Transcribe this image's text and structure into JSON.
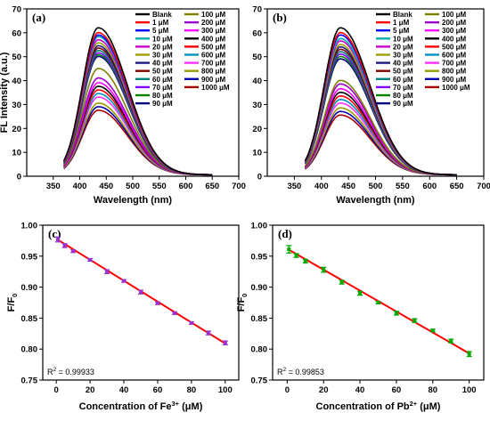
{
  "colors": {
    "spectra": [
      "#000000",
      "#ff0000",
      "#0000ff",
      "#00b0b0",
      "#cc00cc",
      "#a0a000",
      "#1a1a80",
      "#800000",
      "#008080",
      "#8000ff",
      "#008000",
      "#000080",
      "#808000",
      "#9900cc",
      "#ff00ff",
      "#000000",
      "#ff0000",
      "#008fbf",
      "#ff33ff",
      "#999900",
      "#0000aa",
      "#aa0000"
    ],
    "fit_line": "#ff0000",
    "errorbars_c": "#9933cc",
    "errorbars_d": "#00aa00"
  },
  "chart_data": [
    {
      "panel": "(a)",
      "type": "line",
      "xlabel": "Wavelength (nm)",
      "ylabel": "FL Intensity (a.u.)",
      "xlim": [
        300,
        700
      ],
      "ylim": [
        0,
        70
      ],
      "xticks": [
        350,
        400,
        450,
        500,
        550,
        600,
        650,
        700
      ],
      "yticks": [
        0,
        10,
        20,
        30,
        40,
        50,
        60,
        70
      ],
      "x_range": [
        370,
        650
      ],
      "peak_x": 435,
      "series": [
        {
          "name": "Blank",
          "peak": 61.5
        },
        {
          "name": "1 μM",
          "peak": 59.5
        },
        {
          "name": "5 μM",
          "peak": 58.5
        },
        {
          "name": "10 μM",
          "peak": 57.8
        },
        {
          "name": "20 μM",
          "peak": 56.5
        },
        {
          "name": "30 μM",
          "peak": 55.2
        },
        {
          "name": "40 μM",
          "peak": 54.0
        },
        {
          "name": "50 μM",
          "peak": 53.0
        },
        {
          "name": "60 μM",
          "peak": 52.0
        },
        {
          "name": "70 μM",
          "peak": 51.0
        },
        {
          "name": "80 μM",
          "peak": 50.2
        },
        {
          "name": "90 μM",
          "peak": 49.5
        },
        {
          "name": "100 μM",
          "peak": 44.5
        },
        {
          "name": "200 μM",
          "peak": 40.5
        },
        {
          "name": "300 μM",
          "peak": 38.5
        },
        {
          "name": "400 μM",
          "peak": 37.0
        },
        {
          "name": "500 μM",
          "peak": 35.5
        },
        {
          "name": "600 μM",
          "peak": 34.0
        },
        {
          "name": "700 μM",
          "peak": 32.5
        },
        {
          "name": "800 μM",
          "peak": 30.0
        },
        {
          "name": "900 μM",
          "peak": 28.5
        },
        {
          "name": "1000 μM",
          "peak": 27.0
        }
      ]
    },
    {
      "panel": "(b)",
      "type": "line",
      "xlabel": "Wavelength (nm)",
      "ylabel": "",
      "xlim": [
        300,
        700
      ],
      "ylim": [
        0,
        70
      ],
      "xticks": [
        350,
        400,
        450,
        500,
        550,
        600,
        650,
        700
      ],
      "yticks": [
        0,
        10,
        20,
        30,
        40,
        50,
        60,
        70
      ],
      "x_range": [
        370,
        650
      ],
      "peak_x": 435,
      "series": [
        {
          "name": "Blank",
          "peak": 61.5
        },
        {
          "name": "1 μM",
          "peak": 59.5
        },
        {
          "name": "5 μM",
          "peak": 58.5
        },
        {
          "name": "10 μM",
          "peak": 57.0
        },
        {
          "name": "20 μM",
          "peak": 56.0
        },
        {
          "name": "30 μM",
          "peak": 54.5
        },
        {
          "name": "40 μM",
          "peak": 53.5
        },
        {
          "name": "50 μM",
          "peak": 52.5
        },
        {
          "name": "60 μM",
          "peak": 51.5
        },
        {
          "name": "70 μM",
          "peak": 50.5
        },
        {
          "name": "80 μM",
          "peak": 49.5
        },
        {
          "name": "90 μM",
          "peak": 48.5
        },
        {
          "name": "100 μM",
          "peak": 39.5
        },
        {
          "name": "200 μM",
          "peak": 38.0
        },
        {
          "name": "300 μM",
          "peak": 36.0
        },
        {
          "name": "400 μM",
          "peak": 34.5
        },
        {
          "name": "500 μM",
          "peak": 33.0
        },
        {
          "name": "600 μM",
          "peak": 31.5
        },
        {
          "name": "700 μM",
          "peak": 30.0
        },
        {
          "name": "800 μM",
          "peak": 28.0
        },
        {
          "name": "900 μM",
          "peak": 26.5
        },
        {
          "name": "1000 μM",
          "peak": 25.0
        }
      ]
    },
    {
      "panel": "(c)",
      "type": "scatter",
      "xlabel_prefix": "Concentration of Fe",
      "xlabel_sup": "3+",
      "xlabel_suffix": " (μM)",
      "ylabel": "F/F",
      "ylabel_sub": "0",
      "annotation": "R",
      "annotation_sup": "2",
      "annotation_value": " = 0.99933",
      "xlim": [
        -8,
        108
      ],
      "ylim": [
        0.75,
        1.0
      ],
      "xticks": [
        0,
        20,
        40,
        60,
        80,
        100
      ],
      "yticks": [
        "0.75",
        "0.80",
        "0.85",
        "0.90",
        "0.95",
        "1.00"
      ],
      "x": [
        1,
        5,
        10,
        20,
        30,
        40,
        50,
        60,
        70,
        80,
        90,
        100
      ],
      "y": [
        0.977,
        0.967,
        0.958,
        0.944,
        0.925,
        0.91,
        0.892,
        0.874,
        0.858,
        0.842,
        0.826,
        0.81
      ],
      "yerr": [
        0.004,
        0.003,
        0.002,
        0.002,
        0.003,
        0.002,
        0.003,
        0.002,
        0.002,
        0.002,
        0.003,
        0.003
      ],
      "fit": {
        "x0": 0,
        "y0": 0.978,
        "x1": 100,
        "y1": 0.809
      }
    },
    {
      "panel": "(d)",
      "type": "scatter",
      "xlabel_prefix": "Concentration of Pb",
      "xlabel_sup": "2+",
      "xlabel_suffix": " (μM)",
      "ylabel": "F/F",
      "ylabel_sub": "0",
      "annotation": "R",
      "annotation_sup": "2",
      "annotation_value": " = 0.99853",
      "xlim": [
        -8,
        108
      ],
      "ylim": [
        0.75,
        1.0
      ],
      "xticks": [
        0,
        20,
        40,
        60,
        80,
        100
      ],
      "yticks": [
        "0.75",
        "0.80",
        "0.85",
        "0.90",
        "0.95",
        "1.00"
      ],
      "x": [
        1,
        5,
        10,
        20,
        30,
        40,
        50,
        60,
        70,
        80,
        90,
        100
      ],
      "y": [
        0.961,
        0.951,
        0.942,
        0.928,
        0.908,
        0.89,
        0.875,
        0.858,
        0.846,
        0.83,
        0.813,
        0.792
      ],
      "yerr": [
        0.006,
        0.003,
        0.003,
        0.004,
        0.003,
        0.003,
        0.002,
        0.003,
        0.003,
        0.002,
        0.003,
        0.004
      ],
      "fit": {
        "x0": 0,
        "y0": 0.962,
        "x1": 100,
        "y1": 0.793
      }
    }
  ]
}
